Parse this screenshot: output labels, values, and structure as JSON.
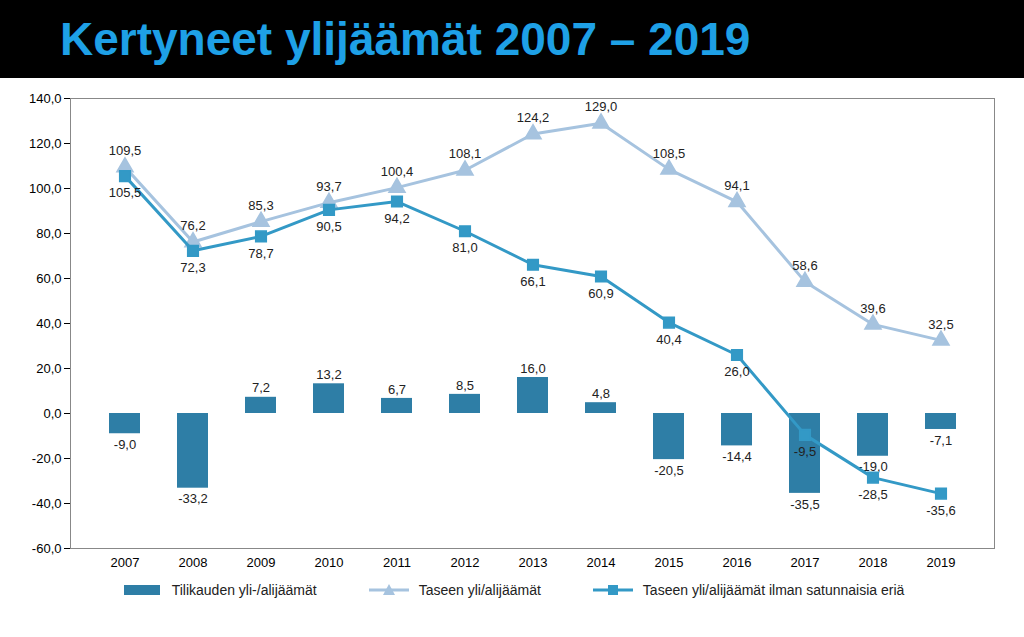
{
  "chart_data": {
    "type": "bar",
    "title": "Kertyneet ylijäämät 2007 – 2019",
    "categories": [
      "2007",
      "2008",
      "2009",
      "2010",
      "2011",
      "2012",
      "2013",
      "2014",
      "2015",
      "2016",
      "2017",
      "2018",
      "2019"
    ],
    "series": [
      {
        "name": "Tilikauden yli-/alijäämät",
        "type": "bar",
        "color": "#2e7ea6",
        "values": [
          -9.0,
          -33.2,
          7.2,
          13.2,
          6.7,
          8.5,
          16.0,
          4.8,
          -20.5,
          -14.4,
          -35.5,
          -19.0,
          -7.1
        ],
        "value_labels": [
          "-9,0",
          "-33,2",
          "7,2",
          "13,2",
          "6,7",
          "8,5",
          "16,0",
          "4,8",
          "-20,5",
          "-14,4",
          "-35,5",
          "-19,0",
          "-7,1"
        ]
      },
      {
        "name": "Taseen yli/alijäämät",
        "type": "line",
        "color": "#a6c3df",
        "marker": "triangle",
        "values": [
          109.5,
          76.2,
          85.3,
          93.7,
          100.4,
          108.1,
          124.2,
          129.0,
          108.5,
          94.1,
          58.6,
          39.6,
          32.5
        ],
        "value_labels": [
          "109,5",
          "76,2",
          "85,3",
          "93,7",
          "100,4",
          "108,1",
          "124,2",
          "129,0",
          "108,5",
          "94,1",
          "58,6",
          "39,6",
          "32,5"
        ]
      },
      {
        "name": "Taseen yli/alijäämät ilman satunnaisia eriä",
        "type": "line",
        "color": "#3399c6",
        "marker": "square",
        "values": [
          105.5,
          72.3,
          78.7,
          90.5,
          94.2,
          81.0,
          66.1,
          60.9,
          40.4,
          26.0,
          -9.5,
          -28.5,
          -35.6
        ],
        "value_labels": [
          "105,5",
          "72,3",
          "78,7",
          "90,5",
          "94,2",
          "81,0",
          "66,1",
          "60,9",
          "40,4",
          "26,0",
          "-9,5",
          "-28,5",
          "-35,6"
        ]
      }
    ],
    "ylim": [
      -60,
      140
    ],
    "yticks": [
      {
        "value": -60,
        "label": "-60,0"
      },
      {
        "value": -40,
        "label": "-40,0"
      },
      {
        "value": -20,
        "label": "-20,0"
      },
      {
        "value": 0,
        "label": "0,0"
      },
      {
        "value": 20,
        "label": "20,0"
      },
      {
        "value": 40,
        "label": "40,0"
      },
      {
        "value": 60,
        "label": "60,0"
      },
      {
        "value": 80,
        "label": "80,0"
      },
      {
        "value": 100,
        "label": "100,0"
      },
      {
        "value": 120,
        "label": "120,0"
      },
      {
        "value": 140,
        "label": "140,0"
      }
    ],
    "grid": false,
    "data_labels": true,
    "legend": "bottom"
  }
}
